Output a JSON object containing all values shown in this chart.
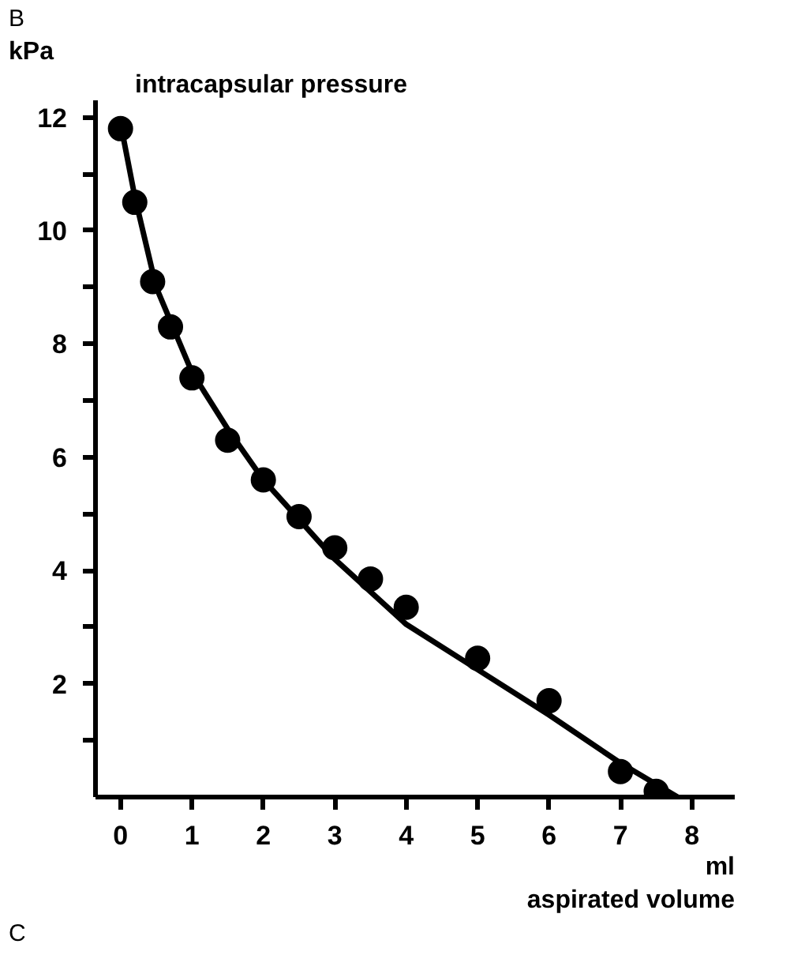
{
  "chart_data": {
    "type": "scatter",
    "title": "intracapsular pressure",
    "ylabel": "kPa",
    "xlabel": "aspirated volume",
    "annotations": [
      "B",
      "C",
      "ml"
    ],
    "x": [
      0,
      0.2,
      0.45,
      0.7,
      1,
      1.5,
      2,
      2.5,
      3,
      3.5,
      4,
      5,
      6,
      7,
      7.5
    ],
    "series": [
      {
        "color": "#000000",
        "marker": "circle",
        "values": [
          11.8,
          10.5,
          9.1,
          8.3,
          7.4,
          6.3,
          5.6,
          4.95,
          4.4,
          3.85,
          3.35,
          2.45,
          1.7,
          0.45,
          0.1
        ]
      },
      {
        "type": "line",
        "color": "#000000",
        "line_style": "solid",
        "x": [
          0,
          0.2,
          0.5,
          1,
          1.5,
          2,
          3,
          4,
          5,
          6,
          7,
          7.8
        ],
        "values": [
          11.9,
          10.6,
          9.0,
          7.5,
          6.5,
          5.6,
          4.2,
          3.05,
          2.25,
          1.45,
          0.6,
          0
        ]
      }
    ],
    "grid": false,
    "xlim": [
      -0.35,
      8.6
    ],
    "ylim": [
      0,
      12.3
    ],
    "xticks": [
      0,
      1,
      2,
      3,
      4,
      5,
      6,
      7,
      8
    ],
    "yticks": [
      {
        "value": 1,
        "label": null
      },
      2,
      {
        "value": 3,
        "label": null
      },
      4,
      {
        "value": 5,
        "label": null
      },
      6,
      {
        "value": 7,
        "label": null
      },
      8,
      {
        "value": 9,
        "label": null
      },
      10,
      {
        "value": 11,
        "label": null
      },
      12
    ]
  }
}
